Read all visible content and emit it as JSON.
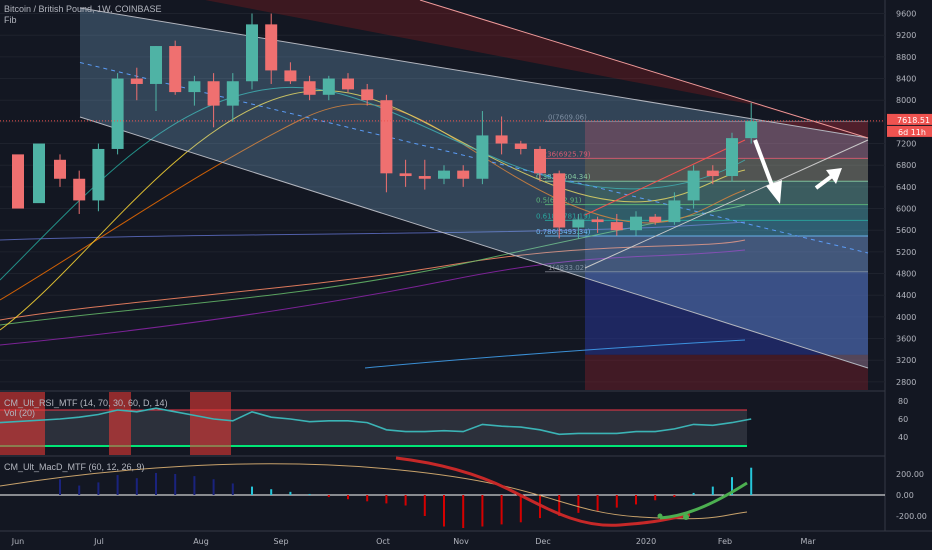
{
  "header": {
    "symbol_line": "Bitcoin / British Pound, 1W, COINBASE",
    "study_line": "Fib"
  },
  "price_tags": {
    "last_price": "7618.51",
    "countdown": "6d 11h"
  },
  "rsi_panel": {
    "title": "CM_Ult_RSI_MTF (14, 70, 30, 60, D, 14)",
    "vol_label": "Vol (20)",
    "levels": [
      80,
      60,
      40
    ],
    "overbought": 70,
    "oversold": 30,
    "color_line": "#3bb3b5"
  },
  "macd_panel": {
    "title": "CM_Ult_MacD_MTF (60, 12, 26, 9)",
    "levels": [
      "200.00",
      "0.00",
      "-200.00"
    ]
  },
  "fib_levels": [
    {
      "label": "0(7609.06)",
      "price": 7609,
      "color": "#787b86"
    },
    {
      "label": "0.236(6925.79)",
      "price": 6926,
      "color": "#f23645"
    },
    {
      "label": "0.382(6504.34)",
      "price": 6504,
      "color": "#81c784"
    },
    {
      "label": "0.5(6072.91)",
      "price": 6073,
      "color": "#4caf50"
    },
    {
      "label": "0.618(5781.19)",
      "price": 5781,
      "color": "#089981"
    },
    {
      "label": "0.786(5493.34)",
      "price": 5493,
      "color": "#64b5f6"
    },
    {
      "label": "1(4833.02)",
      "price": 4833,
      "color": "#787b86"
    }
  ],
  "chart_data": {
    "type": "candlestick",
    "x_labels": [
      "Jun",
      "Jul",
      "Aug",
      "Sep",
      "Oct",
      "Nov",
      "Dec",
      "2020",
      "Feb",
      "Mar"
    ],
    "y_ticks": [
      2800,
      3200,
      3600,
      4000,
      4400,
      4800,
      5200,
      5600,
      6000,
      6400,
      6800,
      7200,
      7600,
      8000,
      8400,
      8800,
      9200,
      9600
    ],
    "ylim": [
      2650,
      9850
    ],
    "weeks": [
      "2019-05-27",
      "2019-06-03",
      "2019-06-10",
      "2019-06-17",
      "2019-06-24",
      "2019-07-01",
      "2019-07-08",
      "2019-07-15",
      "2019-07-22",
      "2019-07-29",
      "2019-08-05",
      "2019-08-12",
      "2019-08-19",
      "2019-08-26",
      "2019-09-02",
      "2019-09-09",
      "2019-09-16",
      "2019-09-23",
      "2019-09-30",
      "2019-10-07",
      "2019-10-14",
      "2019-10-21",
      "2019-10-28",
      "2019-11-04",
      "2019-11-11",
      "2019-11-18",
      "2019-11-25",
      "2019-12-02",
      "2019-12-09",
      "2019-12-16",
      "2019-12-23",
      "2019-12-30",
      "2020-01-06",
      "2020-01-13",
      "2020-01-20",
      "2020-01-27",
      "2020-02-03"
    ],
    "candles": [
      {
        "o": 6900,
        "h": 7000,
        "l": 6400,
        "c": 6550
      },
      {
        "o": 6550,
        "h": 6700,
        "l": 5900,
        "c": 6150
      },
      {
        "o": 6150,
        "h": 7200,
        "l": 5950,
        "c": 7100
      },
      {
        "o": 7100,
        "h": 8500,
        "l": 7000,
        "c": 8400
      },
      {
        "o": 8400,
        "h": 8600,
        "l": 8000,
        "c": 8300
      },
      {
        "o": 8300,
        "h": 9000,
        "l": 7800,
        "c": 9000
      },
      {
        "o": 9000,
        "h": 9100,
        "l": 8100,
        "c": 8150
      },
      {
        "o": 8150,
        "h": 8450,
        "l": 7900,
        "c": 8350
      },
      {
        "o": 8350,
        "h": 8500,
        "l": 7500,
        "c": 7900
      },
      {
        "o": 7900,
        "h": 8500,
        "l": 7600,
        "c": 8350
      },
      {
        "o": 8350,
        "h": 9600,
        "l": 8200,
        "c": 9400
      },
      {
        "o": 9400,
        "h": 9600,
        "l": 8300,
        "c": 8550
      },
      {
        "o": 8550,
        "h": 8700,
        "l": 8300,
        "c": 8350
      },
      {
        "o": 8350,
        "h": 8450,
        "l": 8000,
        "c": 8100
      },
      {
        "o": 8100,
        "h": 8450,
        "l": 8000,
        "c": 8400
      },
      {
        "o": 8400,
        "h": 8500,
        "l": 8150,
        "c": 8200
      },
      {
        "o": 8200,
        "h": 8300,
        "l": 7900,
        "c": 8000
      },
      {
        "o": 8000,
        "h": 8100,
        "l": 6300,
        "c": 6650
      },
      {
        "o": 6650,
        "h": 6900,
        "l": 6400,
        "c": 6600
      },
      {
        "o": 6600,
        "h": 6900,
        "l": 6350,
        "c": 6550
      },
      {
        "o": 6550,
        "h": 6800,
        "l": 6450,
        "c": 6700
      },
      {
        "o": 6700,
        "h": 6800,
        "l": 6400,
        "c": 6550
      },
      {
        "o": 6550,
        "h": 7800,
        "l": 6450,
        "c": 7350
      },
      {
        "o": 7350,
        "h": 7700,
        "l": 7000,
        "c": 7200
      },
      {
        "o": 7200,
        "h": 7250,
        "l": 7000,
        "c": 7100
      },
      {
        "o": 7100,
        "h": 7150,
        "l": 6500,
        "c": 6650
      },
      {
        "o": 6650,
        "h": 6700,
        "l": 5450,
        "c": 5650
      },
      {
        "o": 5650,
        "h": 5900,
        "l": 5450,
        "c": 5800
      },
      {
        "o": 5800,
        "h": 5850,
        "l": 5550,
        "c": 5750
      },
      {
        "o": 5750,
        "h": 5900,
        "l": 5500,
        "c": 5600
      },
      {
        "o": 5600,
        "h": 5950,
        "l": 5500,
        "c": 5850
      },
      {
        "o": 5850,
        "h": 5900,
        "l": 5700,
        "c": 5750
      },
      {
        "o": 5750,
        "h": 6300,
        "l": 5700,
        "c": 6150
      },
      {
        "o": 6150,
        "h": 6800,
        "l": 6000,
        "c": 6700
      },
      {
        "o": 6700,
        "h": 6800,
        "l": 6450,
        "c": 6600
      },
      {
        "o": 6600,
        "h": 7400,
        "l": 6500,
        "c": 7300
      },
      {
        "o": 7300,
        "h": 7950,
        "l": 7200,
        "c": 7620
      }
    ],
    "rsi_values": [
      60,
      62,
      65,
      70,
      68,
      72,
      68,
      64,
      60,
      58,
      68,
      62,
      60,
      57,
      58,
      58,
      56,
      48,
      46,
      46,
      47,
      46,
      54,
      52,
      51,
      48,
      43,
      44,
      44,
      44,
      46,
      46,
      49,
      54,
      53,
      56,
      60
    ]
  }
}
